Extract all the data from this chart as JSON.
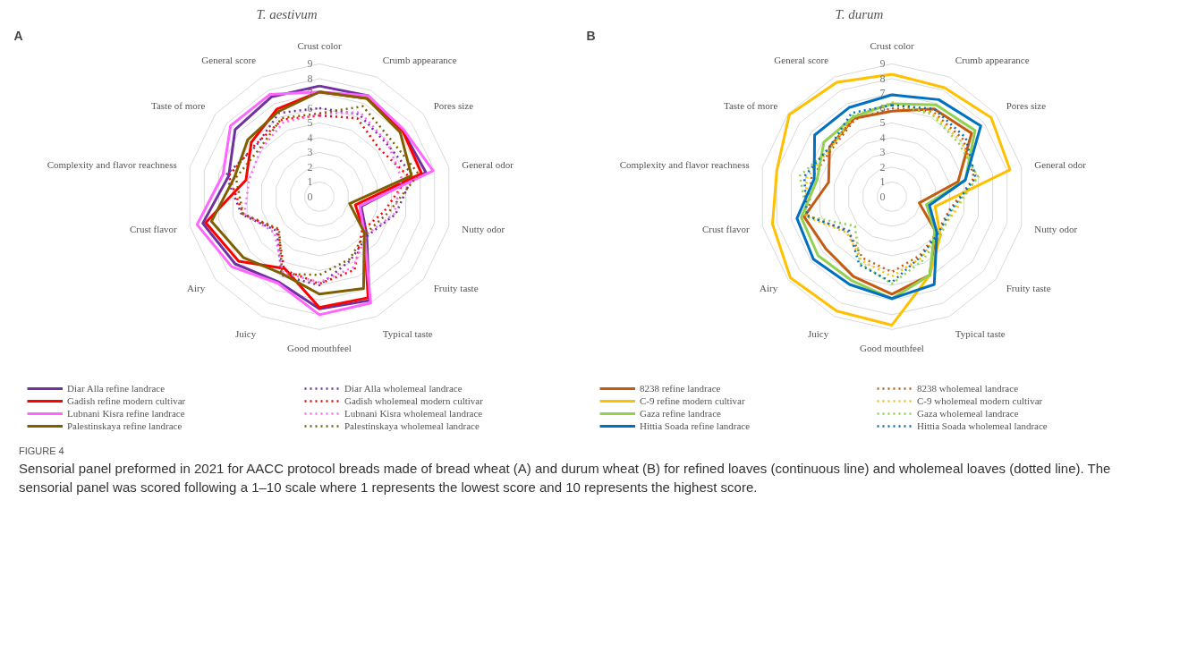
{
  "chart_data": [
    {
      "type": "radar",
      "title": "T. aestivum",
      "annotations": [
        "A",
        "FIGURE 4",
        "Sensorial panel preformed in 2021 for AACC protocol breads made of bread wheat (A) and durum wheat (B) for refined loaves (continuous line) and wholemeal loaves (dotted line). The sensorial panel was scored following a 1–10 scale where 1 represents the lowest score and 10 represents the highest score."
      ],
      "categories": [
        "Crust color",
        "Crumb appearance",
        "Pores size",
        "General odor",
        "Nutty odor",
        "Fruity taste",
        "Typical taste",
        "Good mouthfeel",
        "Juicy",
        "Airy",
        "Crust flavor",
        "Complexity and flavor reachness",
        "Taste of more",
        "General score"
      ],
      "ylim": [
        0,
        9
      ],
      "yticks": [
        0,
        1,
        2,
        3,
        4,
        5,
        6,
        7,
        8,
        9
      ],
      "grid": true,
      "legend": "bottom",
      "series": [
        {
          "name": "Diar Alla refine landrace",
          "color": "#7030a0",
          "line_style": "solid",
          "values": [
            7.5,
            7.6,
            7.2,
            7.4,
            2.9,
            4.1,
            7.8,
            7.6,
            6.4,
            7.3,
            8.1,
            6.3,
            7.3,
            7.5
          ]
        },
        {
          "name": "Diar Alla wholemeal landrace",
          "color": "#7030a0",
          "line_style": "dotted",
          "values": [
            6.0,
            6.2,
            5.8,
            6.5,
            5.3,
            4.2,
            4.8,
            6.0,
            5.9,
            3.7,
            5.4,
            6.5,
            5.5,
            6.3
          ]
        },
        {
          "name": "Gadish refine modern cultivar",
          "color": "#ff0000",
          "line_style": "solid",
          "values": [
            7.1,
            7.4,
            7.2,
            7.1,
            2.5,
            3.9,
            7.6,
            7.5,
            5.4,
            7.0,
            7.9,
            5.1,
            5.9,
            6.6
          ]
        },
        {
          "name": "Gadish wholemeal modern cultivar",
          "color": "#ff0000",
          "line_style": "dotted",
          "values": [
            5.5,
            5.9,
            5.2,
            6.2,
            4.5,
            3.7,
            5.5,
            5.9,
            5.5,
            3.6,
            5.3,
            6.3,
            5.6,
            5.8
          ]
        },
        {
          "name": "Lubnani Kisra refine landrace",
          "color": "#ff66ff",
          "line_style": "solid",
          "values": [
            7.1,
            7.6,
            7.3,
            7.9,
            2.8,
            3.9,
            8.0,
            8.0,
            6.5,
            7.6,
            8.5,
            6.7,
            7.7,
            7.7
          ]
        },
        {
          "name": "Lubnani Kisra wholemeal landrace",
          "color": "#ff66ff",
          "line_style": "dotted",
          "values": [
            5.6,
            6.35,
            5.9,
            5.7,
            5.2,
            4.1,
            5.3,
            5.8,
            5.7,
            3.9,
            5.2,
            4.9,
            5.1,
            5.6
          ]
        },
        {
          "name": "Palestinskaya refine landrace",
          "color": "#7f6000",
          "line_style": "solid",
          "values": [
            7.1,
            7.4,
            7.0,
            6.4,
            2.1,
            3.9,
            6.9,
            6.6,
            5.8,
            6.6,
            7.5,
            5.9,
            6.2,
            6.4
          ]
        },
        {
          "name": "Palestinskaya wholemeal landrace",
          "color": "#7f6000",
          "line_style": "dotted",
          "values": [
            5.65,
            6.8,
            6.2,
            6.9,
            4.8,
            4.0,
            4.7,
            5.3,
            5.8,
            3.5,
            5.3,
            5.8,
            5.2,
            5.9
          ]
        }
      ]
    },
    {
      "type": "radar",
      "title": "T. durum",
      "annotations": [
        "B"
      ],
      "categories": [
        "Crust color",
        "Crumb appearance",
        "Pores size",
        "General odor",
        "Nutty odor",
        "Fruity taste",
        "Typical taste",
        "Good mouthfeel",
        "Juicy",
        "Airy",
        "Crust flavor",
        "Complexity and flavor reachness",
        "Taste of more",
        "General score"
      ],
      "ylim": [
        0,
        9
      ],
      "yticks": [
        0,
        1,
        2,
        3,
        4,
        5,
        6,
        7,
        8,
        9
      ],
      "grid": true,
      "legend": "bottom",
      "series": [
        {
          "name": "8238 refine landrace",
          "color": "#c55a11",
          "line_style": "solid",
          "values": [
            5.8,
            6.6,
            6.9,
            4.6,
            1.9,
            3.8,
            5.9,
            6.6,
            6.0,
            5.7,
            6.1,
            4.4,
            5.4,
            5.9
          ]
        },
        {
          "name": "8238 wholemeal landrace",
          "color": "#c55a11",
          "line_style": "dotted",
          "values": [
            6.0,
            6.4,
            6.2,
            5.7,
            4.0,
            3.9,
            4.4,
            5.1,
            4.6,
            3.8,
            5.8,
            5.6,
            5.2,
            5.8
          ]
        },
        {
          "name": "C-9 refine modern cultivar",
          "color": "#ffc000",
          "line_style": "solid",
          "values": [
            8.3,
            8.2,
            8.6,
            8.2,
            3.0,
            4.2,
            5.9,
            8.7,
            8.6,
            8.8,
            8.3,
            8.0,
            8.9,
            8.6
          ]
        },
        {
          "name": "C-9 wholemeal modern cultivar",
          "color": "#ffc000",
          "line_style": "dotted",
          "values": [
            6.4,
            6.3,
            6.0,
            5.9,
            4.4,
            4.0,
            4.6,
            5.4,
            4.8,
            3.9,
            6.0,
            5.9,
            5.3,
            6.0
          ]
        },
        {
          "name": "Gaza refine landrace",
          "color": "#92d050",
          "line_style": "solid",
          "values": [
            6.3,
            6.9,
            7.2,
            5.1,
            2.4,
            3.7,
            5.9,
            6.9,
            6.3,
            6.4,
            6.3,
            5.2,
            5.9,
            6.0
          ]
        },
        {
          "name": "Gaza wholemeal landrace",
          "color": "#92d050",
          "line_style": "dotted",
          "values": [
            6.3,
            6.2,
            5.8,
            6.0,
            4.2,
            4.2,
            4.8,
            5.9,
            5.0,
            3.2,
            5.9,
            6.4,
            5.3,
            6.1
          ]
        },
        {
          "name": "Hittia Soada refine landrace",
          "color": "#0070c0",
          "line_style": "solid",
          "values": [
            6.9,
            7.3,
            7.7,
            5.1,
            2.6,
            3.9,
            6.6,
            6.9,
            6.6,
            6.8,
            6.6,
            5.4,
            6.7,
            6.7
          ]
        },
        {
          "name": "Hittia Soada wholemeal landrace",
          "color": "#0070c0",
          "line_style": "dotted",
          "values": [
            6.2,
            6.6,
            6.4,
            5.8,
            4.1,
            4.0,
            4.5,
            5.8,
            5.1,
            3.7,
            5.9,
            6.1,
            5.4,
            6.3
          ]
        }
      ]
    }
  ]
}
